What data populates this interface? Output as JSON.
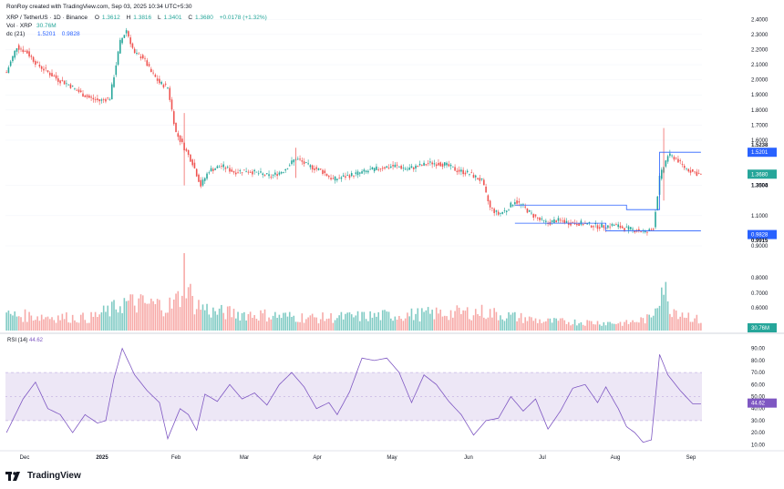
{
  "header": {
    "author_line": "RonRoy created with TradingView.com, Sep 03, 2025 10:34 UTC+5:30",
    "symbol_line": "XRP / TetherUS · 1D · Binance",
    "ohlc": [
      {
        "k": "O",
        "v": "1.3612"
      },
      {
        "k": "H",
        "v": "1.3816"
      },
      {
        "k": "L",
        "v": "1.3401"
      },
      {
        "k": "C",
        "v": "1.3680"
      },
      {
        "k": "",
        "v": "+0.0178 (+1.32%)"
      }
    ],
    "vol_line": {
      "label": "Vol · XRP",
      "value": "30.76M"
    },
    "dc_line": {
      "label": "dc (21)",
      "upper": "1.5201",
      "lower": "0.9828"
    }
  },
  "rsi": {
    "label": "RSI (14)",
    "value": "44.62"
  },
  "logo_text": "TradingView",
  "colors": {
    "up": "#26a69a",
    "down": "#ef5350",
    "channel": "#2962ff",
    "rsi_line": "#7e57c2",
    "rsi_band": "#ede7f6"
  },
  "chart_data": {
    "type": "candlestick",
    "x_ticks": [
      "Dec",
      "2025",
      "Feb",
      "Mar",
      "Apr",
      "May",
      "Jun",
      "Jul",
      "Aug",
      "Sep"
    ],
    "price_ticks": [
      "2.4000",
      "2.3000",
      "2.2000",
      "2.1000",
      "2.0000",
      "1.9000",
      "1.8000",
      "1.7000",
      "1.6000",
      "1.3000",
      "1.1000",
      "0.9000",
      "0.8000",
      "0.7000",
      "0.6000"
    ],
    "price_labels": [
      {
        "text": "1.5238",
        "style": "plain"
      },
      {
        "text": "1.5201",
        "style": "blue"
      },
      {
        "text": "1.3680",
        "style": "green"
      },
      {
        "text": "1.3504",
        "style": "plain"
      },
      {
        "text": "0.9828",
        "style": "blue"
      },
      {
        "text": "0.9915",
        "style": "plain"
      }
    ],
    "volume_label": "30.76M",
    "rsi_ticks": [
      "90.00",
      "80.00",
      "70.00",
      "60.00",
      "50.00",
      "40.00",
      "30.00",
      "20.00",
      "10.00"
    ],
    "rsi_band": [
      30,
      70
    ],
    "rsi_value_label": "44.62",
    "price_anchors": [
      [
        0,
        2.05
      ],
      [
        5,
        2.22
      ],
      [
        10,
        2.18
      ],
      [
        15,
        2.1
      ],
      [
        20,
        2.05
      ],
      [
        25,
        2.0
      ],
      [
        30,
        1.97
      ],
      [
        35,
        1.92
      ],
      [
        40,
        1.88
      ],
      [
        45,
        1.86
      ],
      [
        50,
        1.88
      ],
      [
        55,
        2.25
      ],
      [
        58,
        2.33
      ],
      [
        62,
        2.17
      ],
      [
        66,
        2.15
      ],
      [
        70,
        2.05
      ],
      [
        74,
        1.98
      ],
      [
        78,
        1.95
      ],
      [
        82,
        1.65
      ],
      [
        86,
        1.55
      ],
      [
        90,
        1.45
      ],
      [
        94,
        1.3
      ],
      [
        98,
        1.4
      ],
      [
        104,
        1.43
      ],
      [
        110,
        1.39
      ],
      [
        116,
        1.4
      ],
      [
        122,
        1.38
      ],
      [
        128,
        1.36
      ],
      [
        134,
        1.4
      ],
      [
        140,
        1.48
      ],
      [
        146,
        1.43
      ],
      [
        152,
        1.4
      ],
      [
        158,
        1.34
      ],
      [
        164,
        1.36
      ],
      [
        170,
        1.38
      ],
      [
        176,
        1.4
      ],
      [
        182,
        1.42
      ],
      [
        188,
        1.43
      ],
      [
        194,
        1.41
      ],
      [
        200,
        1.43
      ],
      [
        206,
        1.45
      ],
      [
        212,
        1.44
      ],
      [
        218,
        1.4
      ],
      [
        224,
        1.38
      ],
      [
        230,
        1.33
      ],
      [
        234,
        1.15
      ],
      [
        238,
        1.11
      ],
      [
        242,
        1.14
      ],
      [
        246,
        1.2
      ],
      [
        250,
        1.16
      ],
      [
        254,
        1.11
      ],
      [
        258,
        1.07
      ],
      [
        262,
        1.05
      ],
      [
        266,
        1.07
      ],
      [
        270,
        1.06
      ],
      [
        274,
        1.05
      ],
      [
        278,
        1.05
      ],
      [
        282,
        1.04
      ],
      [
        286,
        1.03
      ],
      [
        290,
        1.03
      ],
      [
        294,
        1.04
      ],
      [
        298,
        1.02
      ],
      [
        302,
        1.01
      ],
      [
        306,
        1.0
      ],
      [
        310,
        0.99
      ],
      [
        313,
        1.02
      ],
      [
        316,
        1.35
      ],
      [
        320,
        1.5
      ],
      [
        324,
        1.48
      ],
      [
        328,
        1.42
      ],
      [
        332,
        1.39
      ],
      [
        336,
        1.37
      ]
    ],
    "volume_anchors": [
      [
        0,
        0.25
      ],
      [
        40,
        0.2
      ],
      [
        52,
        0.35
      ],
      [
        56,
        0.45
      ],
      [
        80,
        0.4
      ],
      [
        84,
        0.55
      ],
      [
        86,
        1.0
      ],
      [
        90,
        0.45
      ],
      [
        100,
        0.3
      ],
      [
        150,
        0.2
      ],
      [
        230,
        0.3
      ],
      [
        240,
        0.25
      ],
      [
        260,
        0.15
      ],
      [
        300,
        0.12
      ],
      [
        312,
        0.2
      ],
      [
        316,
        0.65
      ],
      [
        318,
        0.8
      ],
      [
        320,
        0.4
      ],
      [
        336,
        0.15
      ]
    ],
    "rsi_anchors": [
      [
        0,
        20
      ],
      [
        8,
        48
      ],
      [
        14,
        62
      ],
      [
        20,
        40
      ],
      [
        26,
        35
      ],
      [
        32,
        20
      ],
      [
        38,
        35
      ],
      [
        44,
        28
      ],
      [
        48,
        30
      ],
      [
        52,
        65
      ],
      [
        56,
        90
      ],
      [
        62,
        68
      ],
      [
        68,
        55
      ],
      [
        74,
        45
      ],
      [
        78,
        15
      ],
      [
        84,
        40
      ],
      [
        88,
        35
      ],
      [
        92,
        22
      ],
      [
        96,
        52
      ],
      [
        102,
        46
      ],
      [
        108,
        60
      ],
      [
        114,
        48
      ],
      [
        120,
        53
      ],
      [
        126,
        43
      ],
      [
        132,
        60
      ],
      [
        138,
        70
      ],
      [
        144,
        58
      ],
      [
        150,
        40
      ],
      [
        156,
        45
      ],
      [
        160,
        35
      ],
      [
        166,
        54
      ],
      [
        172,
        82
      ],
      [
        178,
        80
      ],
      [
        184,
        82
      ],
      [
        190,
        70
      ],
      [
        196,
        45
      ],
      [
        202,
        68
      ],
      [
        208,
        60
      ],
      [
        214,
        46
      ],
      [
        220,
        35
      ],
      [
        226,
        18
      ],
      [
        232,
        30
      ],
      [
        238,
        32
      ],
      [
        244,
        50
      ],
      [
        250,
        38
      ],
      [
        256,
        48
      ],
      [
        262,
        23
      ],
      [
        268,
        38
      ],
      [
        274,
        57
      ],
      [
        280,
        60
      ],
      [
        286,
        45
      ],
      [
        290,
        58
      ],
      [
        296,
        40
      ],
      [
        300,
        25
      ],
      [
        304,
        20
      ],
      [
        308,
        12
      ],
      [
        312,
        14
      ],
      [
        316,
        85
      ],
      [
        320,
        68
      ],
      [
        326,
        55
      ],
      [
        332,
        44
      ]
    ]
  }
}
